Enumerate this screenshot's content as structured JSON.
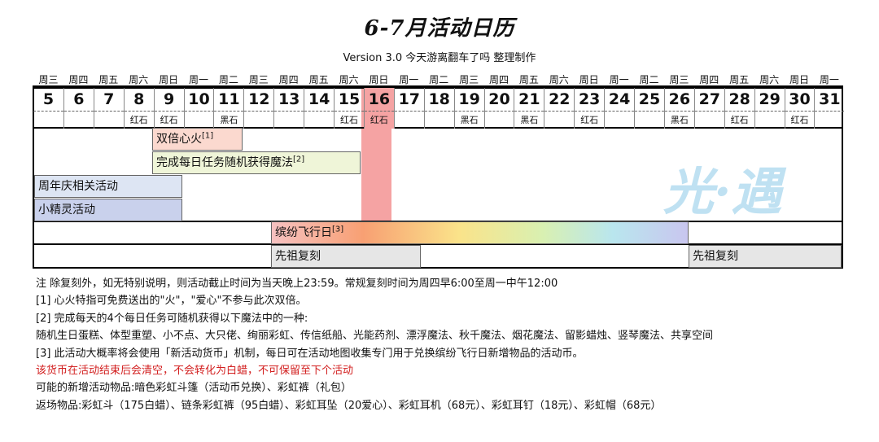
{
  "title": "6-7月活动日历",
  "subtitle": "Version 3.0   今天游离翻车了吗 整理制作",
  "weekdays": [
    "周三",
    "周四",
    "周五",
    "周六",
    "周日",
    "周一",
    "周二",
    "周三",
    "周四",
    "周五",
    "周六",
    "周日",
    "周一",
    "周二",
    "周三",
    "周四",
    "周五",
    "周六",
    "周日",
    "周一",
    "周二",
    "周三",
    "周四",
    "周五",
    "周六",
    "周日",
    "周一"
  ],
  "days": [
    {
      "n": "5",
      "s": ""
    },
    {
      "n": "6",
      "s": ""
    },
    {
      "n": "7",
      "s": ""
    },
    {
      "n": "8",
      "s": "红石"
    },
    {
      "n": "9",
      "s": "红石"
    },
    {
      "n": "10",
      "s": ""
    },
    {
      "n": "11",
      "s": "黑石"
    },
    {
      "n": "12",
      "s": ""
    },
    {
      "n": "13",
      "s": ""
    },
    {
      "n": "14",
      "s": ""
    },
    {
      "n": "15",
      "s": "红石"
    },
    {
      "n": "16",
      "s": "红石"
    },
    {
      "n": "17",
      "s": ""
    },
    {
      "n": "18",
      "s": ""
    },
    {
      "n": "19",
      "s": "黑石"
    },
    {
      "n": "20",
      "s": ""
    },
    {
      "n": "21",
      "s": "黑石"
    },
    {
      "n": "22",
      "s": ""
    },
    {
      "n": "23",
      "s": "红石"
    },
    {
      "n": "24",
      "s": ""
    },
    {
      "n": "25",
      "s": ""
    },
    {
      "n": "26",
      "s": "黑石"
    },
    {
      "n": "27",
      "s": ""
    },
    {
      "n": "28",
      "s": "红石"
    },
    {
      "n": "29",
      "s": ""
    },
    {
      "n": "30",
      "s": "红石"
    },
    {
      "n": "31",
      "s": ""
    }
  ],
  "today": "16",
  "events": {
    "double_fire": {
      "label": "双倍心火",
      "ref": "[1]"
    },
    "daily_magic": {
      "label": "完成每日任务随机获得魔法",
      "ref": "[2]"
    },
    "anniversary": {
      "label": "周年庆相关活动"
    },
    "sprite": {
      "label": "小精灵活动"
    },
    "flight_day": {
      "label": "缤纷飞行日",
      "ref": "[3]"
    },
    "ancestor_1": {
      "label": "先祖复刻"
    },
    "ancestor_2": {
      "label": "先祖复刻"
    }
  },
  "logo_text": "光·遇",
  "colors": {
    "today_highlight": "#f5a3a3",
    "fire": "#fbd9cf",
    "magic": "#eff5d8",
    "anniversary": "#dde5f3",
    "sprite": "#c9d1ec",
    "ancestor": "#e6e6e6",
    "warning": "#d21f1f"
  },
  "notes": [
    "注  除复刻外，如无特别说明，则活动截止时间为当天晚上23:59。常规复刻时间为周四早6:00至周一中午12:00",
    "[1] 心火特指可免费送出的\"火\"，\"爱心\"不参与此次双倍。",
    "[2] 完成每天的4个每日任务可随机获得以下魔法中的一种:",
    "      随机生日蛋糕、体型重塑、小不点、大只佬、绚丽彩虹、传信纸船、光能药剂、漂浮魔法、秋千魔法、烟花魔法、留影蜡烛、竖琴魔法、共享空间",
    "[3] 此活动大概率将会使用「新活动货币」机制，每日可在活动地图收集专门用于兑换缤纷飞行日新增物品的活动币。",
    "      该货币在活动结束后会清空，不会转化为白蜡，不可保留至下个活动",
    "      可能的新增活动物品:暗色彩虹斗篷（活动币兑换）、彩虹裤（礼包）",
    "      返场物品:彩虹斗（175白蜡）、链条彩虹裤（95白蜡）、彩虹耳坠（20爱心）、彩虹耳机（68元）、彩虹耳钉（18元）、彩虹帽（68元）"
  ]
}
